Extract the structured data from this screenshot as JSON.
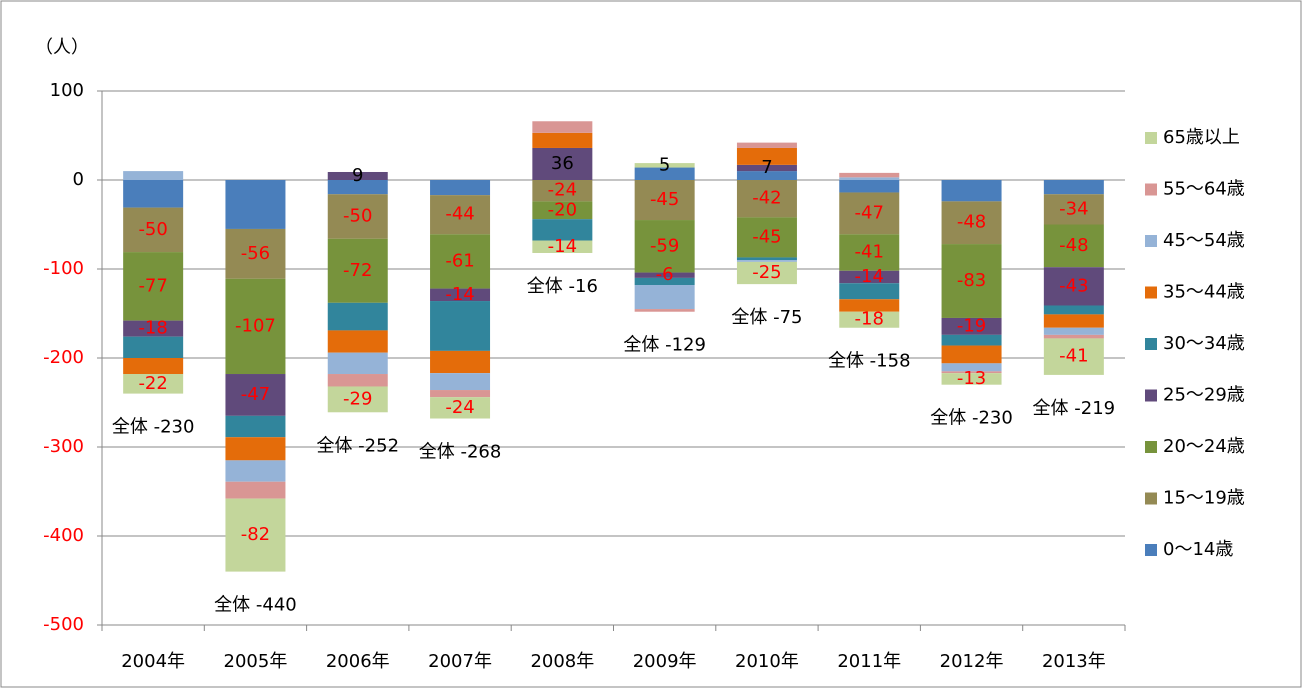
{
  "chart_data": {
    "type": "stacked_bar",
    "unit_label": "（人）",
    "categories": [
      "2004年",
      "2005年",
      "2006年",
      "2007年",
      "2008年",
      "2009年",
      "2010年",
      "2011年",
      "2012年",
      "2013年"
    ],
    "series": [
      {
        "name": "0〜14歳",
        "color": "#4a7ebb",
        "values": [
          -31,
          -55,
          -16,
          -17,
          0,
          14,
          10,
          -14,
          -24,
          -16
        ]
      },
      {
        "name": "15〜19歳",
        "color": "#948a54",
        "data_labels": true,
        "values": [
          -50,
          -56,
          -50,
          -44,
          -24,
          -45,
          -42,
          -47,
          -48,
          -34
        ]
      },
      {
        "name": "20〜24歳",
        "color": "#77933c",
        "data_labels": true,
        "values": [
          -77,
          -107,
          -72,
          -61,
          -20,
          -59,
          -45,
          -41,
          -83,
          -48
        ]
      },
      {
        "name": "25〜29歳",
        "color": "#604a7b",
        "data_labels": true,
        "values": [
          -18,
          -47,
          9,
          -14,
          36,
          -6,
          7,
          -14,
          -19,
          -43
        ]
      },
      {
        "name": "30〜34歳",
        "color": "#31859c",
        "values": [
          -24,
          -24,
          -31,
          -56,
          -24,
          -8,
          -3,
          -18,
          -12,
          -10
        ]
      },
      {
        "name": "35〜44歳",
        "color": "#e46c0a",
        "values": [
          -18,
          -26,
          -25,
          -25,
          17,
          0,
          19,
          -14,
          -20,
          -15
        ]
      },
      {
        "name": "45〜54歳",
        "color": "#95b3d7",
        "values": [
          10,
          -24,
          -24,
          -19,
          0,
          -27,
          -2,
          3,
          -9,
          -8
        ]
      },
      {
        "name": "55〜64歳",
        "color": "#d99694",
        "values": [
          0,
          -19,
          -14,
          -8,
          13,
          -3,
          6,
          5,
          -2,
          -4
        ]
      },
      {
        "name": "65歳以上",
        "color": "#c3d69b",
        "data_labels": true,
        "values": [
          -22,
          -82,
          -29,
          -24,
          -14,
          5,
          -25,
          -18,
          -13,
          -41
        ]
      }
    ],
    "totals": [
      -230,
      -440,
      -252,
      -268,
      -16,
      -129,
      -75,
      -158,
      -230,
      -219
    ],
    "total_labels": [
      "全体 -230",
      "全体 -440",
      "全体 -252",
      "全体 -268",
      "全体 -16",
      "全体 -129",
      "全体 -75",
      "全体 -158",
      "全体 -230",
      "全体 -219"
    ],
    "ylim": [
      -500,
      100
    ],
    "yticks": [
      -500,
      -400,
      -300,
      -200,
      -100,
      0,
      100
    ],
    "grid": true,
    "legend": "right"
  }
}
